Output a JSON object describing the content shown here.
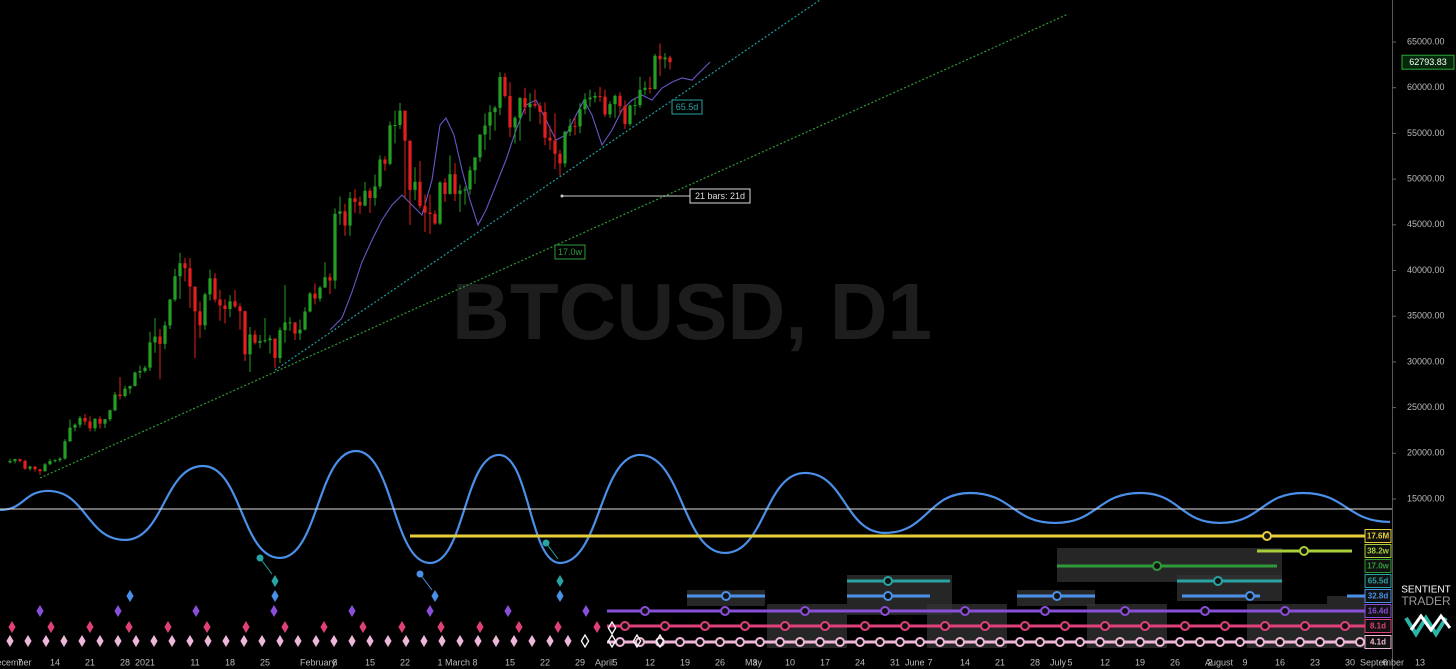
{
  "chart_data": {
    "type": "candlestick",
    "title": "BTCUSD, D1",
    "x": [
      -2,
      -1,
      0,
      1,
      2,
      3,
      4,
      5,
      6,
      7,
      8,
      9,
      10,
      11,
      12,
      13,
      14,
      15,
      16,
      17,
      18,
      19,
      20,
      21,
      22,
      23,
      24,
      25,
      26,
      27,
      28,
      29,
      30,
      31,
      32,
      33,
      34,
      35,
      36,
      37,
      38,
      39,
      40,
      41,
      42,
      43,
      44,
      45,
      46,
      47,
      48,
      49,
      50,
      51,
      52,
      53,
      54,
      55,
      56,
      57,
      58,
      59,
      60,
      61,
      62,
      63,
      64,
      65,
      66,
      67,
      68,
      69,
      70,
      71,
      72,
      73,
      74,
      75,
      76,
      77,
      78,
      79,
      80,
      81,
      82,
      83,
      84,
      85,
      86,
      87,
      88,
      89,
      90,
      91,
      92,
      93,
      94,
      95,
      96,
      97,
      98,
      99,
      100,
      101,
      102,
      103,
      104,
      105,
      106,
      107,
      108,
      109,
      110,
      111,
      112,
      113,
      114,
      115,
      116,
      117,
      118,
      119,
      120,
      121,
      122,
      123,
      124,
      125,
      126,
      127,
      128,
      129,
      130
    ],
    "open": [
      19000,
      19150,
      19360,
      19170,
      18320,
      18550,
      18250,
      18040,
      18800,
      19140,
      19250,
      19430,
      21310,
      22810,
      23130,
      23860,
      23480,
      22740,
      23780,
      23240,
      23730,
      24710,
      26440,
      26270,
      27080,
      27360,
      28840,
      29000,
      29370,
      32130,
      32780,
      31970,
      33990,
      36820,
      39370,
      40800,
      40250,
      38240,
      35540,
      34010,
      37390,
      39150,
      36820,
      36180,
      35790,
      36630,
      36070,
      35550,
      30830,
      33000,
      32100,
      32290,
      32370,
      32570,
      30430,
      33470,
      34320,
      34320,
      33110,
      33540,
      35510,
      37470,
      36930,
      38140,
      39270,
      38900,
      46200,
      46480,
      44920,
      47910,
      47500,
      47110,
      48720,
      47940,
      49200,
      52150,
      51680,
      55890,
      55920,
      57490,
      54210,
      48820,
      49710,
      47070,
      46340,
      46190,
      45140,
      49630,
      48380,
      50540,
      48380,
      48760,
      48880,
      50970,
      52380,
      54880,
      55860,
      57330,
      57810,
      61180,
      59100,
      55660,
      56710,
      58880,
      57870,
      58250,
      58030,
      57350,
      54530,
      54210,
      52770,
      51710,
      55190,
      55830,
      55770,
      57640,
      58730,
      58920,
      59100,
      59030,
      57080,
      58210,
      59120,
      57990,
      56030,
      58070,
      58100,
      59770,
      59990,
      59860,
      63500,
      63110,
      63310
    ],
    "high": [
      19400,
      19420,
      19420,
      19290,
      18640,
      18600,
      18290,
      18950,
      19410,
      19350,
      19560,
      21540,
      23700,
      23260,
      24100,
      24300,
      24060,
      23840,
      24060,
      23770,
      24790,
      26720,
      28350,
      27390,
      27400,
      28940,
      29600,
      29600,
      33300,
      34800,
      33600,
      34440,
      36880,
      40180,
      41950,
      41380,
      41350,
      38260,
      36600,
      37600,
      40100,
      39700,
      37900,
      36850,
      37300,
      37850,
      36420,
      35600,
      33820,
      33460,
      32940,
      34800,
      32920,
      32560,
      33780,
      38400,
      34880,
      34350,
      34640,
      35980,
      37660,
      38590,
      38300,
      40900,
      39700,
      46800,
      48100,
      47300,
      48600,
      48900,
      48100,
      49700,
      49000,
      50500,
      52600,
      52500,
      56300,
      57500,
      58350,
      57500,
      54200,
      51300,
      52000,
      48300,
      48300,
      46600,
      49780,
      50100,
      52600,
      51750,
      49400,
      49200,
      51400,
      52400,
      54900,
      57200,
      58100,
      58000,
      61700,
      61600,
      60600,
      56900,
      58980,
      60000,
      59400,
      59800,
      58400,
      58400,
      55800,
      57200,
      53200,
      55300,
      56600,
      56800,
      58300,
      59400,
      59800,
      59500,
      60100,
      59800,
      58500,
      59250,
      59500,
      58600,
      58150,
      58900,
      61200,
      60700,
      61200,
      63700,
      64850,
      63800,
      63500
    ],
    "low": [
      18900,
      18900,
      19000,
      18200,
      18100,
      18000,
      17650,
      18000,
      18700,
      19000,
      19050,
      19300,
      21250,
      22400,
      22800,
      23100,
      22400,
      22400,
      22700,
      22750,
      23500,
      24600,
      25900,
      26100,
      26500,
      27300,
      28200,
      28800,
      29000,
      31000,
      28100,
      31400,
      33600,
      36600,
      36900,
      38800,
      35900,
      30400,
      32600,
      33500,
      36700,
      36500,
      34500,
      34200,
      34900,
      35900,
      33500,
      30100,
      28900,
      31900,
      31500,
      32100,
      30900,
      29300,
      29900,
      32100,
      33400,
      32400,
      32400,
      33450,
      35400,
      36300,
      36600,
      38100,
      37400,
      38000,
      45000,
      43800,
      43800,
      46300,
      46200,
      47000,
      46300,
      47100,
      48900,
      50900,
      51500,
      53900,
      55500,
      48000,
      45000,
      47700,
      46800,
      44200,
      44000,
      45000,
      45000,
      47500,
      48300,
      47600,
      46400,
      47200,
      48300,
      49500,
      51900,
      53200,
      54300,
      55300,
      57000,
      58900,
      54600,
      53900,
      54200,
      57100,
      56300,
      57800,
      56000,
      53700,
      53200,
      51100,
      50400,
      51300,
      54700,
      54800,
      55000,
      57100,
      57900,
      58400,
      58500,
      56800,
      56700,
      56700,
      57000,
      55500,
      55800,
      57000,
      57800,
      59200,
      59400,
      59800,
      61300,
      62100,
      62000
    ],
    "close": [
      19150,
      19360,
      19170,
      18320,
      18550,
      18250,
      18040,
      18800,
      19140,
      19250,
      19430,
      21310,
      22810,
      23130,
      23860,
      23480,
      22740,
      23780,
      23240,
      23730,
      24710,
      26440,
      26270,
      27080,
      27360,
      28840,
      29000,
      29370,
      32130,
      32780,
      31970,
      33990,
      36820,
      39370,
      40800,
      40250,
      38240,
      35540,
      34010,
      37390,
      39150,
      36820,
      36180,
      35790,
      36630,
      36070,
      35550,
      30830,
      33000,
      32100,
      32290,
      32370,
      32570,
      30430,
      33470,
      34320,
      34320,
      33110,
      33540,
      35510,
      37470,
      36930,
      38140,
      39270,
      38900,
      46200,
      46480,
      44920,
      47910,
      47500,
      47110,
      48720,
      47940,
      49200,
      52150,
      51680,
      55890,
      55920,
      57490,
      54210,
      48820,
      49710,
      47070,
      46340,
      46190,
      45140,
      49630,
      48380,
      50540,
      48380,
      48760,
      48880,
      50970,
      52380,
      54880,
      55860,
      57330,
      57810,
      61180,
      59100,
      55660,
      56710,
      58880,
      57870,
      58250,
      58030,
      57350,
      54530,
      54210,
      52770,
      51710,
      55190,
      55830,
      55770,
      57640,
      58730,
      58920,
      59100,
      59030,
      57080,
      58210,
      59120,
      57990,
      56030,
      58070,
      58100,
      59770,
      59990,
      59860,
      63500,
      63110,
      63310,
      62794
    ],
    "up_color": "#23a024",
    "down_color": "#e3201d",
    "current_price": 62793.83,
    "xlim": [
      -4,
      274.4
    ],
    "xticks": [
      {
        "value": -6,
        "label": "December"
      },
      {
        "value": 0,
        "label": "7"
      },
      {
        "value": 7,
        "label": "14"
      },
      {
        "value": 14,
        "label": "21"
      },
      {
        "value": 21,
        "label": "28"
      },
      {
        "value": 25,
        "label": "2021"
      },
      {
        "value": 35,
        "label": "11"
      },
      {
        "value": 42,
        "label": "18"
      },
      {
        "value": 49,
        "label": "25"
      },
      {
        "value": 56,
        "label": "February"
      },
      {
        "value": 63,
        "label": "8"
      },
      {
        "value": 70,
        "label": "15"
      },
      {
        "value": 77,
        "label": "22"
      },
      {
        "value": 84,
        "label": "1"
      },
      {
        "value": 85,
        "label": "March"
      },
      {
        "value": 91,
        "label": "8"
      },
      {
        "value": 98,
        "label": "15"
      },
      {
        "value": 105,
        "label": "22"
      },
      {
        "value": 112,
        "label": "29"
      },
      {
        "value": 115,
        "label": "April"
      },
      {
        "value": 119,
        "label": "5"
      },
      {
        "value": 126,
        "label": "12"
      },
      {
        "value": 133,
        "label": "19"
      },
      {
        "value": 140,
        "label": "26"
      },
      {
        "value": 145,
        "label": "May"
      },
      {
        "value": 147,
        "label": "3"
      },
      {
        "value": 154,
        "label": "10"
      },
      {
        "value": 161,
        "label": "17"
      },
      {
        "value": 168,
        "label": "24"
      },
      {
        "value": 175,
        "label": "31"
      },
      {
        "value": 177,
        "label": "June"
      },
      {
        "value": 182,
        "label": "7"
      },
      {
        "value": 189,
        "label": "14"
      },
      {
        "value": 196,
        "label": "21"
      },
      {
        "value": 203,
        "label": "28"
      },
      {
        "value": 206,
        "label": "July"
      },
      {
        "value": 210,
        "label": "5"
      },
      {
        "value": 217,
        "label": "12"
      },
      {
        "value": 224,
        "label": "19"
      },
      {
        "value": 231,
        "label": "26"
      },
      {
        "value": 237,
        "label": "August"
      },
      {
        "value": 238,
        "label": "2"
      },
      {
        "value": 245,
        "label": "9"
      },
      {
        "value": 252,
        "label": "16"
      },
      {
        "value": 259,
        "label": "23"
      },
      {
        "value": 266,
        "label": "30"
      },
      {
        "value": 268,
        "label": "September"
      },
      {
        "value": 273,
        "label": "6"
      },
      {
        "value": 280,
        "label": "13"
      }
    ],
    "ylim": [
      -2070,
      69600
    ],
    "yticks": [
      {
        "value": 15000,
        "label": "15000.00"
      },
      {
        "value": 20000,
        "label": "20000.00"
      },
      {
        "value": 25000,
        "label": "25000.00"
      },
      {
        "value": 30000,
        "label": "30000.00"
      },
      {
        "value": 35000,
        "label": "35000.00"
      },
      {
        "value": 40000,
        "label": "40000.00"
      },
      {
        "value": 45000,
        "label": "45000.00"
      },
      {
        "value": 50000,
        "label": "50000.00"
      },
      {
        "value": 55000,
        "label": "55000.00"
      },
      {
        "value": 60000,
        "label": "60000.00"
      },
      {
        "value": 65000,
        "label": "65000.00"
      }
    ],
    "trendlines": [
      {
        "x": [
          51,
          160
        ],
        "values": [
          29100,
          69600
        ],
        "color": "#1f9d9d"
      },
      {
        "x": [
          4,
          209.6
        ],
        "values": [
          17300,
          68060
        ],
        "color": "#2f9a3a"
      }
    ],
    "overlay": {
      "x": [
        62,
        64.4,
        66.4,
        68.4,
        70.4,
        72.4,
        74.4,
        76.4,
        78.4,
        80.4,
        82.4,
        84,
        85.2,
        86.8,
        88.4,
        90,
        91.6,
        93.2,
        95.2,
        97.2,
        99.2,
        101.2,
        103.2,
        105.2,
        107.2,
        109.2,
        111.2,
        112.8,
        114.4,
        116.4,
        118.4,
        120.4,
        122.4,
        124.4,
        126.4,
        128.4,
        130.4,
        132.4,
        134.4,
        136.4,
        138
      ],
      "values": [
        33490,
        34800,
        37650,
        40930,
        43340,
        45530,
        47170,
        48260,
        47170,
        46070,
        49900,
        55920,
        56690,
        54830,
        51000,
        47710,
        44980,
        46620,
        49360,
        52090,
        55370,
        58110,
        58650,
        56470,
        54280,
        54830,
        57010,
        58650,
        57010,
        53730,
        55370,
        57560,
        58650,
        59200,
        58650,
        59970,
        60620,
        61060,
        60840,
        61940,
        62810
      ],
      "color": "#6657c8"
    },
    "wave": {
      "x": [
        -4,
        5.6,
        21,
        36.6,
        52,
        67.2,
        82,
        95.8,
        108,
        124,
        141,
        157,
        173,
        190,
        207,
        224,
        240,
        256.6,
        274
      ],
      "values": [
        13800,
        15880,
        10520,
        18610,
        8550,
        20250,
        8000,
        19820,
        8000,
        19820,
        9100,
        17850,
        11290,
        15660,
        12380,
        15660,
        12380,
        15660,
        12490
      ],
      "color": "#4a90e8"
    },
    "level": 13900,
    "annotations": [
      {
        "text": "65.5d",
        "color": "#29a3a3"
      },
      {
        "text": "17.0w",
        "color": "#2f9a3a"
      },
      {
        "text": "21 bars: 21d",
        "color": "#dddddd"
      }
    ],
    "cycles": [
      {
        "label": "17.6M",
        "color": "#e6cf3a"
      },
      {
        "label": "38.2w",
        "color": "#a8cf3a"
      },
      {
        "label": "17.0w",
        "color": "#2f9a3a"
      },
      {
        "label": "65.5d",
        "color": "#29a3a3"
      },
      {
        "label": "32.8d",
        "color": "#4a90e8"
      },
      {
        "label": "16.4d",
        "color": "#8a4fd8"
      },
      {
        "label": "8.1d",
        "color": "#e0407a"
      },
      {
        "label": "4.1d",
        "color": "#f0b8d8"
      }
    ],
    "brand": [
      "SENTIENT",
      "TRADER"
    ]
  }
}
